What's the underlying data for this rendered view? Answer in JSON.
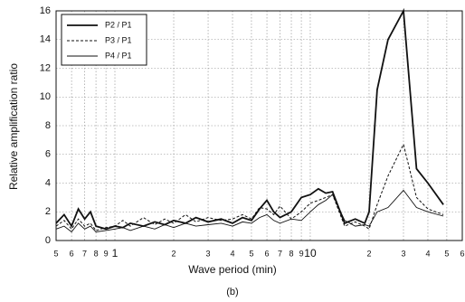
{
  "chart_data": {
    "type": "line",
    "xlabel": "Wave period (min)",
    "ylabel": "Relative amplification ratio",
    "caption": "(b)",
    "xscale": "log",
    "grid": true,
    "legend": "upper left",
    "xlim": [
      0.5,
      60
    ],
    "ylim": [
      0,
      16
    ],
    "xticks": [
      {
        "value": 0.5,
        "label": "5"
      },
      {
        "value": 0.6,
        "label": "6"
      },
      {
        "value": 0.7,
        "label": "7"
      },
      {
        "value": 0.8,
        "label": "8"
      },
      {
        "value": 0.9,
        "label": "9"
      },
      1,
      {
        "value": 2,
        "label": "2"
      },
      {
        "value": 3,
        "label": "3"
      },
      {
        "value": 4,
        "label": "4"
      },
      {
        "value": 5,
        "label": "5"
      },
      {
        "value": 6,
        "label": "6"
      },
      {
        "value": 7,
        "label": "7"
      },
      {
        "value": 8,
        "label": "8"
      },
      {
        "value": 9,
        "label": "9"
      },
      10,
      {
        "value": 20,
        "label": "2"
      },
      {
        "value": 30,
        "label": "3"
      },
      {
        "value": 40,
        "label": "4"
      },
      {
        "value": 50,
        "label": "5"
      },
      {
        "value": 60,
        "label": "6"
      }
    ],
    "yticks": [
      0,
      2,
      4,
      6,
      8,
      10,
      12,
      14,
      16
    ],
    "x": [
      0.5,
      0.55,
      0.6,
      0.65,
      0.7,
      0.75,
      0.8,
      0.9,
      1.0,
      1.1,
      1.2,
      1.4,
      1.6,
      1.8,
      2.0,
      2.3,
      2.6,
      3.0,
      3.5,
      4.0,
      4.5,
      5.0,
      5.5,
      6.0,
      6.5,
      7.0,
      8.0,
      9.0,
      10,
      11,
      12,
      13,
      15,
      17,
      19,
      20,
      22,
      25,
      30,
      35,
      40,
      48
    ],
    "series": [
      {
        "name": "P2 / P1",
        "color": "#111111",
        "style": "solid",
        "values": [
          1.2,
          1.8,
          1.0,
          2.2,
          1.5,
          2.0,
          1.0,
          0.8,
          1.0,
          0.9,
          1.2,
          1.0,
          1.3,
          1.1,
          1.4,
          1.2,
          1.6,
          1.3,
          1.5,
          1.2,
          1.6,
          1.4,
          2.2,
          2.8,
          2.0,
          1.6,
          2.0,
          3.0,
          3.2,
          3.6,
          3.3,
          3.4,
          1.2,
          1.5,
          1.2,
          2.0,
          10.5,
          14,
          16,
          5,
          4,
          2.5
        ]
      },
      {
        "name": "P3 / P1",
        "color": "#111111",
        "style": "dashed",
        "values": [
          1.0,
          1.4,
          0.8,
          1.5,
          1.0,
          1.2,
          0.7,
          0.9,
          1.0,
          1.4,
          1.0,
          1.6,
          1.1,
          1.5,
          1.2,
          1.8,
          1.3,
          1.6,
          1.4,
          1.5,
          1.8,
          1.5,
          2.3,
          2.2,
          1.8,
          2.4,
          1.5,
          2.0,
          2.6,
          2.8,
          3.0,
          3.2,
          1.0,
          1.3,
          1.0,
          0.8,
          2.5,
          4.5,
          6.7,
          3.0,
          2.2,
          1.8
        ]
      },
      {
        "name": "P4 / P1",
        "color": "#111111",
        "style": "thin",
        "values": [
          0.8,
          1.0,
          0.6,
          1.2,
          0.8,
          1.0,
          0.6,
          0.7,
          0.8,
          0.9,
          0.7,
          1.0,
          0.8,
          1.1,
          0.9,
          1.2,
          1.0,
          1.1,
          1.2,
          1.0,
          1.3,
          1.2,
          1.6,
          1.8,
          1.4,
          1.2,
          1.5,
          1.4,
          2.0,
          2.5,
          2.8,
          3.2,
          1.4,
          1.0,
          1.1,
          1.0,
          2.0,
          2.3,
          3.5,
          2.3,
          2.0,
          1.7
        ]
      }
    ]
  }
}
